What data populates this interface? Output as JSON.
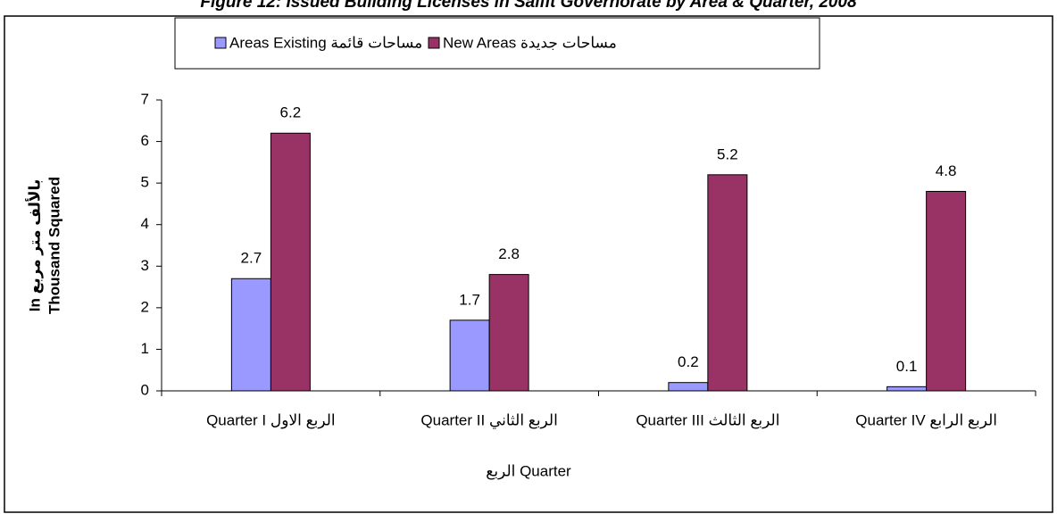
{
  "chart_data": {
    "type": "bar",
    "title": "Figure 12: Issued Building Licenses in Salfit Governorate by Area & Quarter, 2008",
    "y_label_lines": [
      "In بالألف متر مربع",
      "Thousand Squared"
    ],
    "x_label": "الربع Quarter",
    "categories": [
      "Quarter I الربع الاول",
      "Quarter II الربع الثاني",
      "Quarter III الربع الثالث",
      "Quarter IV الربع الرابع"
    ],
    "series": [
      {
        "name": "Areas Existing مساحات قائمة",
        "color": "#9999ff",
        "values": [
          2.7,
          1.7,
          0.2,
          0.1
        ]
      },
      {
        "name": "New Areas مساحات جديدة",
        "color": "#993366",
        "values": [
          6.2,
          2.8,
          5.2,
          4.8
        ]
      }
    ],
    "ylim": [
      0,
      7
    ],
    "yticks": [
      0,
      1,
      2,
      3,
      4,
      5,
      6,
      7
    ],
    "grid": false,
    "legend": "top"
  }
}
